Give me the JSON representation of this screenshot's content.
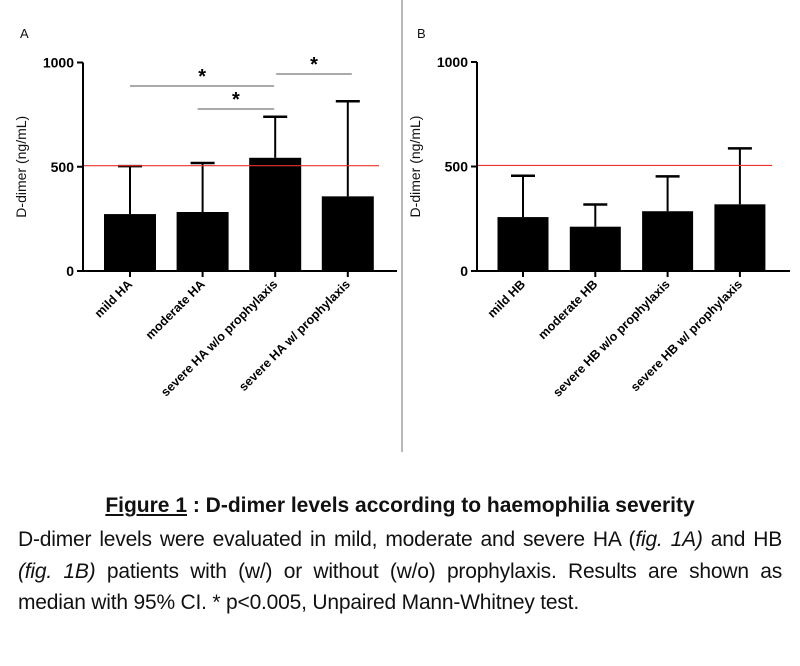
{
  "chart_data": [
    {
      "panel": "A",
      "type": "bar",
      "ylabel": "D-dimer (ng/mL)",
      "xlabel": "",
      "ylim": [
        0,
        1000
      ],
      "yticks": [
        0,
        500,
        1000
      ],
      "categories": [
        "mild HA",
        "moderate HA",
        "severe HA w/o prophylaxis",
        "severe HA w/ prophylaxis"
      ],
      "values": [
        273,
        283,
        543,
        358
      ],
      "error_upper": [
        503,
        518,
        740,
        814
      ],
      "reference_line": 505,
      "reference_line_color": "#e8322e",
      "bar_color": "#000000",
      "significance": [
        {
          "from": 0,
          "to": 2,
          "label": "*"
        },
        {
          "from": 1,
          "to": 2,
          "label": "*"
        },
        {
          "from": 2,
          "to": 3,
          "label": "*"
        }
      ]
    },
    {
      "panel": "B",
      "type": "bar",
      "ylabel": "D-dimer (ng/mL)",
      "xlabel": "",
      "ylim": [
        0,
        1000
      ],
      "yticks": [
        0,
        500,
        1000
      ],
      "categories": [
        "mild HB",
        "moderate HB",
        "severe HB w/o prophylaxis",
        "severe HB w/ prophylaxis"
      ],
      "values": [
        258,
        212,
        286,
        319
      ],
      "error_upper": [
        456,
        318,
        453,
        587
      ],
      "reference_line": 505,
      "reference_line_color": "#e8322e",
      "bar_color": "#000000",
      "significance": []
    }
  ],
  "caption": {
    "title_prefix": "Figure 1",
    "title_rest": " : D-dimer levels according to haemophilia severity",
    "body_1": "D-dimer levels were evaluated in mild, moderate and severe HA (",
    "body_2": "fig. 1A)",
    "body_3": " and HB ",
    "body_4": "(fig. 1B)",
    "body_5": " patients with (w/) or without (w/o) prophylaxis. Results are shown as median with 95% CI. * p<0.005, Unpaired Mann-Whitney test."
  }
}
